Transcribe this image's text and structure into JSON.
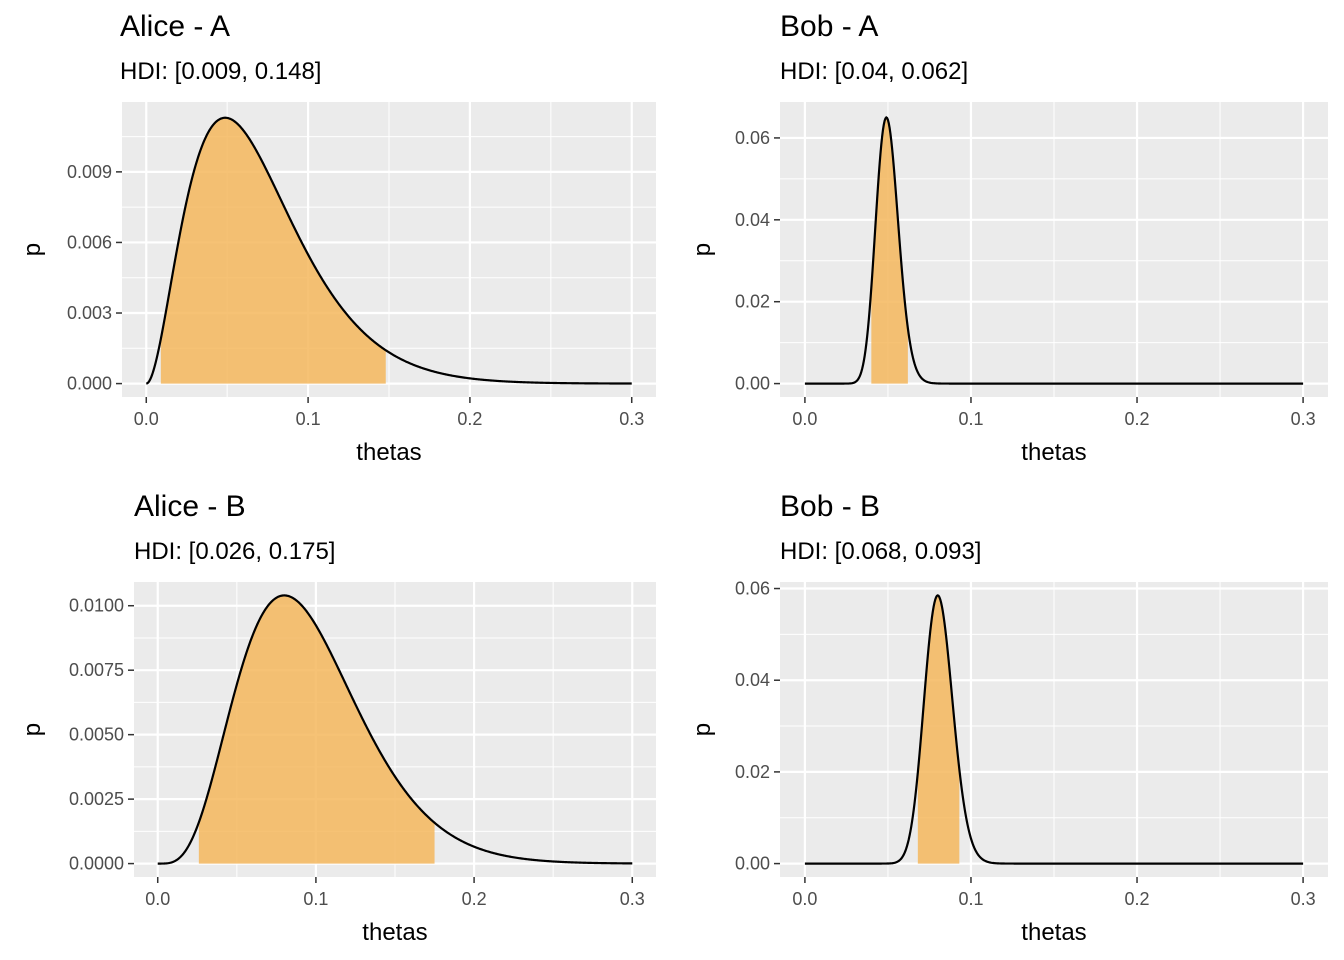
{
  "chart_data": [
    {
      "type": "area",
      "title": "Alice - A",
      "subtitle": "HDI: [0.009, 0.148]",
      "xlabel": "thetas",
      "ylabel": "p",
      "xlim": [
        0,
        0.3
      ],
      "ylim": [
        0,
        0.0114
      ],
      "x_ticks": [
        0.0,
        0.1,
        0.2,
        0.3
      ],
      "x_tick_labels": [
        "0.0",
        "0.1",
        "0.2",
        "0.3"
      ],
      "y_ticks": [
        0,
        0.003,
        0.006,
        0.009
      ],
      "y_tick_labels": [
        "0.000",
        "0.003",
        "0.006",
        "0.009"
      ],
      "curve": {
        "shape": "beta",
        "a": 3,
        "b": 40,
        "peak_x": 0.05,
        "peak_y": 0.0113
      },
      "hdi": [
        0.009,
        0.148
      ],
      "grid": true
    },
    {
      "type": "area",
      "title": "Bob - A",
      "subtitle": "HDI: [0.04, 0.062]",
      "xlabel": "thetas",
      "ylabel": "p",
      "xlim": [
        0,
        0.3
      ],
      "ylim": [
        0,
        0.0655
      ],
      "x_ticks": [
        0.0,
        0.1,
        0.2,
        0.3
      ],
      "x_tick_labels": [
        "0.0",
        "0.1",
        "0.2",
        "0.3"
      ],
      "y_ticks": [
        0,
        0.02,
        0.04,
        0.06
      ],
      "y_tick_labels": [
        "0.00",
        "0.02",
        "0.04",
        "0.06"
      ],
      "curve": {
        "shape": "beta",
        "a": 51,
        "b": 970,
        "peak_x": 0.05,
        "peak_y": 0.065
      },
      "hdi": [
        0.04,
        0.062
      ],
      "grid": true
    },
    {
      "type": "area",
      "title": "Alice - B",
      "subtitle": "HDI: [0.026, 0.175]",
      "xlabel": "thetas",
      "ylabel": "p",
      "xlim": [
        0,
        0.3
      ],
      "ylim": [
        0,
        0.0104
      ],
      "x_ticks": [
        0.0,
        0.1,
        0.2,
        0.3
      ],
      "x_tick_labels": [
        "0.0",
        "0.1",
        "0.2",
        "0.3"
      ],
      "y_ticks": [
        0,
        0.0025,
        0.005,
        0.0075,
        0.01
      ],
      "y_tick_labels": [
        "0.0000",
        "0.0025",
        "0.0050",
        "0.0075",
        "0.0100"
      ],
      "curve": {
        "shape": "beta",
        "a": 5,
        "b": 47,
        "peak_x": 0.08,
        "peak_y": 0.0104
      },
      "hdi": [
        0.026,
        0.175
      ],
      "grid": true
    },
    {
      "type": "area",
      "title": "Bob - B",
      "subtitle": "HDI: [0.068, 0.093]",
      "xlabel": "thetas",
      "ylabel": "p",
      "xlim": [
        0,
        0.3
      ],
      "ylim": [
        0,
        0.0585
      ],
      "x_ticks": [
        0.0,
        0.1,
        0.2,
        0.3
      ],
      "x_tick_labels": [
        "0.0",
        "0.1",
        "0.2",
        "0.3"
      ],
      "y_ticks": [
        0,
        0.02,
        0.04,
        0.06
      ],
      "y_tick_labels": [
        "0.00",
        "0.02",
        "0.04",
        "0.06"
      ],
      "curve": {
        "shape": "beta",
        "a": 81,
        "b": 921,
        "peak_x": 0.08,
        "peak_y": 0.0585
      },
      "hdi": [
        0.068,
        0.093
      ],
      "grid": true
    }
  ],
  "colors": {
    "panel_bg": "#ebebeb",
    "grid": "#ffffff",
    "hdi_fill": "#f5b75d",
    "curve": "#000000",
    "tick_text": "#4d4d4d"
  }
}
